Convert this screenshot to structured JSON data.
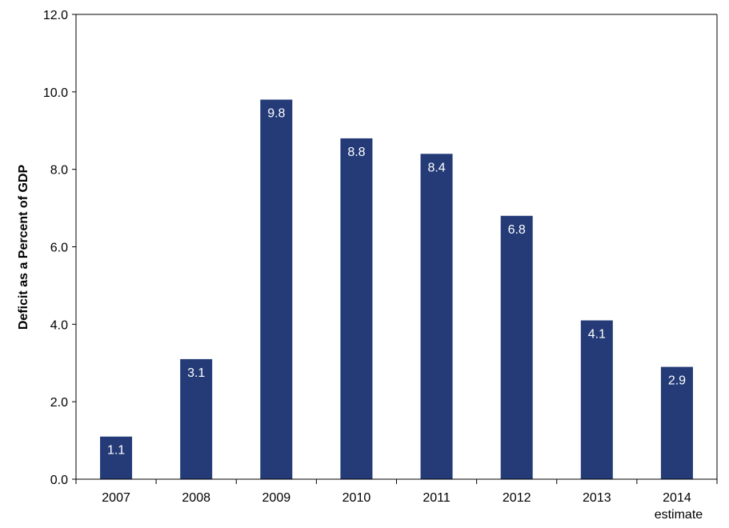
{
  "chart_data": {
    "type": "bar",
    "ylabel": "Deficit as a Percent of GDP",
    "xlabel": "",
    "categories": [
      "2007",
      "2008",
      "2009",
      "2010",
      "2011",
      "2012",
      "2013",
      "2014"
    ],
    "category_sublabels": [
      "",
      "",
      "",
      "",
      "",
      "",
      "",
      "estimate"
    ],
    "values": [
      1.1,
      3.1,
      9.8,
      8.8,
      8.4,
      6.8,
      4.1,
      2.9
    ],
    "value_labels": [
      "1.1",
      "3.1",
      "9.8",
      "8.8",
      "8.4",
      "6.8",
      "4.1",
      "2.9"
    ],
    "ylim": [
      0,
      12
    ],
    "yticks": [
      0,
      2,
      4,
      6,
      8,
      10,
      12
    ],
    "ytick_labels": [
      "0.0",
      "2.0",
      "4.0",
      "6.0",
      "8.0",
      "10.0",
      "12.0"
    ],
    "grid": false,
    "legend": "none",
    "colors": {
      "bar": "#243b78",
      "label": "#ffffff",
      "axis": "#000000"
    }
  }
}
